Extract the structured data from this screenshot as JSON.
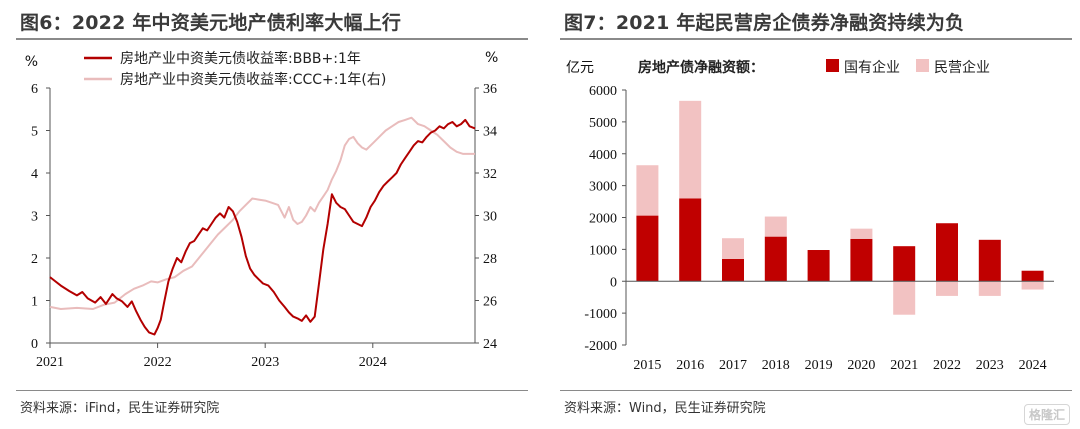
{
  "left": {
    "title": "图6：2022 年中资美元地产债利率大幅上行",
    "source": "资料来源：iFind，民生证券研究院",
    "chart_data": {
      "type": "line",
      "y_left_unit": "%",
      "y_right_unit": "%",
      "y_left_range": [
        0,
        6
      ],
      "y_right_range": [
        24,
        36
      ],
      "y_left_ticks": [
        "0",
        "1",
        "2",
        "3",
        "4",
        "5",
        "6"
      ],
      "y_right_ticks": [
        "24",
        "26",
        "28",
        "30",
        "32",
        "34",
        "36"
      ],
      "x_ticks": [
        {
          "label": "2021",
          "t": 2021.0
        },
        {
          "label": "2022",
          "t": 2022.0
        },
        {
          "label": "2023",
          "t": 2023.0
        },
        {
          "label": "2024",
          "t": 2024.0
        }
      ],
      "x_range": [
        2021.0,
        2024.95
      ],
      "legend_position": "top-left",
      "series": [
        {
          "name": "房地产业中资美元债收益率:BBB+:1年",
          "axis": "left",
          "color": "#b30000",
          "points": [
            [
              2021.0,
              1.55
            ],
            [
              2021.05,
              1.45
            ],
            [
              2021.1,
              1.35
            ],
            [
              2021.18,
              1.22
            ],
            [
              2021.25,
              1.12
            ],
            [
              2021.3,
              1.2
            ],
            [
              2021.35,
              1.05
            ],
            [
              2021.42,
              0.95
            ],
            [
              2021.47,
              1.08
            ],
            [
              2021.52,
              0.92
            ],
            [
              2021.58,
              1.15
            ],
            [
              2021.62,
              1.05
            ],
            [
              2021.67,
              0.98
            ],
            [
              2021.72,
              0.85
            ],
            [
              2021.76,
              0.98
            ],
            [
              2021.8,
              0.75
            ],
            [
              2021.84,
              0.55
            ],
            [
              2021.88,
              0.38
            ],
            [
              2021.92,
              0.25
            ],
            [
              2021.97,
              0.2
            ],
            [
              2022.0,
              0.35
            ],
            [
              2022.03,
              0.55
            ],
            [
              2022.06,
              0.95
            ],
            [
              2022.1,
              1.45
            ],
            [
              2022.14,
              1.75
            ],
            [
              2022.18,
              2.0
            ],
            [
              2022.22,
              1.9
            ],
            [
              2022.26,
              2.15
            ],
            [
              2022.3,
              2.35
            ],
            [
              2022.34,
              2.4
            ],
            [
              2022.38,
              2.55
            ],
            [
              2022.42,
              2.7
            ],
            [
              2022.46,
              2.65
            ],
            [
              2022.5,
              2.8
            ],
            [
              2022.54,
              2.95
            ],
            [
              2022.58,
              3.05
            ],
            [
              2022.62,
              2.95
            ],
            [
              2022.66,
              3.2
            ],
            [
              2022.7,
              3.1
            ],
            [
              2022.74,
              2.85
            ],
            [
              2022.78,
              2.5
            ],
            [
              2022.82,
              2.05
            ],
            [
              2022.86,
              1.75
            ],
            [
              2022.9,
              1.6
            ],
            [
              2022.94,
              1.5
            ],
            [
              2022.98,
              1.4
            ],
            [
              2023.03,
              1.35
            ],
            [
              2023.08,
              1.2
            ],
            [
              2023.13,
              1.0
            ],
            [
              2023.18,
              0.85
            ],
            [
              2023.22,
              0.72
            ],
            [
              2023.26,
              0.62
            ],
            [
              2023.3,
              0.58
            ],
            [
              2023.34,
              0.52
            ],
            [
              2023.38,
              0.65
            ],
            [
              2023.42,
              0.5
            ],
            [
              2023.46,
              0.62
            ],
            [
              2023.5,
              1.4
            ],
            [
              2023.54,
              2.2
            ],
            [
              2023.58,
              2.8
            ],
            [
              2023.62,
              3.5
            ],
            [
              2023.66,
              3.3
            ],
            [
              2023.7,
              3.2
            ],
            [
              2023.74,
              3.15
            ],
            [
              2023.78,
              3.0
            ],
            [
              2023.82,
              2.85
            ],
            [
              2023.86,
              2.8
            ],
            [
              2023.9,
              2.75
            ],
            [
              2023.94,
              2.95
            ],
            [
              2023.98,
              3.2
            ],
            [
              2024.02,
              3.35
            ],
            [
              2024.06,
              3.55
            ],
            [
              2024.1,
              3.7
            ],
            [
              2024.14,
              3.8
            ],
            [
              2024.18,
              3.9
            ],
            [
              2024.22,
              4.0
            ],
            [
              2024.26,
              4.2
            ],
            [
              2024.3,
              4.35
            ],
            [
              2024.34,
              4.5
            ],
            [
              2024.38,
              4.65
            ],
            [
              2024.42,
              4.75
            ],
            [
              2024.46,
              4.72
            ],
            [
              2024.5,
              4.85
            ],
            [
              2024.54,
              4.95
            ],
            [
              2024.58,
              5.0
            ],
            [
              2024.62,
              5.1
            ],
            [
              2024.66,
              5.05
            ],
            [
              2024.7,
              5.15
            ],
            [
              2024.74,
              5.2
            ],
            [
              2024.78,
              5.1
            ],
            [
              2024.82,
              5.15
            ],
            [
              2024.86,
              5.25
            ],
            [
              2024.9,
              5.1
            ],
            [
              2024.95,
              5.05
            ]
          ]
        },
        {
          "name": "房地产业中资美元债收益率:CCC+:1年(右)",
          "axis": "right",
          "color": "#e9bcbc",
          "points": [
            [
              2021.0,
              25.7
            ],
            [
              2021.1,
              25.6
            ],
            [
              2021.25,
              25.65
            ],
            [
              2021.4,
              25.6
            ],
            [
              2021.5,
              25.8
            ],
            [
              2021.6,
              25.9
            ],
            [
              2021.7,
              26.3
            ],
            [
              2021.78,
              26.55
            ],
            [
              2021.86,
              26.7
            ],
            [
              2021.94,
              26.9
            ],
            [
              2022.0,
              26.85
            ],
            [
              2022.08,
              27.0
            ],
            [
              2022.16,
              27.1
            ],
            [
              2022.24,
              27.4
            ],
            [
              2022.32,
              27.6
            ],
            [
              2022.4,
              28.1
            ],
            [
              2022.48,
              28.6
            ],
            [
              2022.56,
              29.1
            ],
            [
              2022.64,
              29.5
            ],
            [
              2022.7,
              29.8
            ],
            [
              2022.76,
              30.2
            ],
            [
              2022.82,
              30.5
            ],
            [
              2022.88,
              30.8
            ],
            [
              2022.94,
              30.75
            ],
            [
              2023.0,
              30.7
            ],
            [
              2023.06,
              30.6
            ],
            [
              2023.12,
              30.5
            ],
            [
              2023.18,
              29.9
            ],
            [
              2023.22,
              30.4
            ],
            [
              2023.26,
              29.8
            ],
            [
              2023.3,
              29.6
            ],
            [
              2023.34,
              29.7
            ],
            [
              2023.38,
              30.0
            ],
            [
              2023.42,
              30.4
            ],
            [
              2023.46,
              30.2
            ],
            [
              2023.5,
              30.6
            ],
            [
              2023.54,
              30.9
            ],
            [
              2023.58,
              31.2
            ],
            [
              2023.62,
              31.7
            ],
            [
              2023.66,
              32.1
            ],
            [
              2023.7,
              32.6
            ],
            [
              2023.74,
              33.3
            ],
            [
              2023.78,
              33.6
            ],
            [
              2023.82,
              33.7
            ],
            [
              2023.86,
              33.4
            ],
            [
              2023.9,
              33.2
            ],
            [
              2023.94,
              33.1
            ],
            [
              2024.0,
              33.4
            ],
            [
              2024.06,
              33.7
            ],
            [
              2024.12,
              34.0
            ],
            [
              2024.18,
              34.2
            ],
            [
              2024.24,
              34.4
            ],
            [
              2024.3,
              34.5
            ],
            [
              2024.36,
              34.6
            ],
            [
              2024.42,
              34.3
            ],
            [
              2024.48,
              34.2
            ],
            [
              2024.54,
              34.0
            ],
            [
              2024.6,
              33.8
            ],
            [
              2024.66,
              33.5
            ],
            [
              2024.72,
              33.2
            ],
            [
              2024.78,
              33.0
            ],
            [
              2024.84,
              32.9
            ],
            [
              2024.9,
              32.9
            ],
            [
              2024.95,
              32.9
            ]
          ]
        }
      ]
    }
  },
  "right": {
    "title": "图7：2021 年起民营房企债券净融资持续为负",
    "source": "资料来源：Wind，民生证券研究院",
    "chart_data": {
      "type": "bar",
      "stacked": true,
      "y_unit": "亿元",
      "y_range": [
        -2000,
        6000
      ],
      "y_ticks": [
        "-2000",
        "-1000",
        "0",
        "1000",
        "2000",
        "3000",
        "4000",
        "5000",
        "6000"
      ],
      "legend_title": "房地产债净融资额：",
      "legend_position": "top",
      "categories": [
        "2015",
        "2016",
        "2017",
        "2018",
        "2019",
        "2020",
        "2021",
        "2022",
        "2023",
        "2024"
      ],
      "series": [
        {
          "name": "国有企业",
          "color": "#c00000",
          "values": [
            2060,
            2600,
            700,
            1400,
            980,
            1330,
            1100,
            1820,
            1300,
            330
          ]
        },
        {
          "name": "民营企业",
          "color": "#f2c2c2",
          "values": [
            1580,
            3060,
            650,
            630,
            0,
            320,
            -1050,
            -460,
            -460,
            -260
          ]
        }
      ]
    }
  },
  "watermark": "格隆汇"
}
